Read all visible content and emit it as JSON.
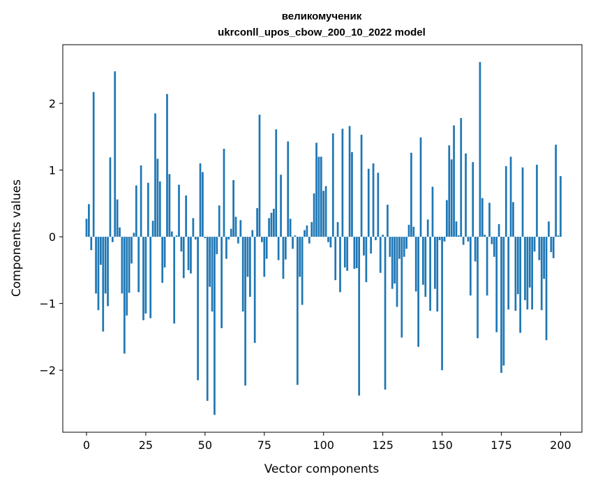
{
  "chart_data": {
    "type": "bar",
    "title_line1": "великомученик",
    "title_line2": "ukrconll_upos_cbow_200_10_2022 model",
    "xlabel": "Vector components",
    "ylabel": "Components values",
    "xlim": [
      -10,
      209
    ],
    "ylim": [
      -2.93,
      2.88
    ],
    "xticks": [
      0,
      25,
      50,
      75,
      100,
      125,
      150,
      175,
      200
    ],
    "yticks": [
      -2,
      -1,
      0,
      1,
      2
    ],
    "xtick_labels": [
      "0",
      "25",
      "50",
      "75",
      "100",
      "125",
      "150",
      "175",
      "200"
    ],
    "ytick_labels": [
      "−2",
      "−1",
      "0",
      "1",
      "2"
    ],
    "bar_color": "#1f77b4",
    "grid": false,
    "values": [
      0.27,
      0.49,
      -0.2,
      2.17,
      -0.85,
      -1.1,
      -0.42,
      -1.42,
      -0.85,
      -1.04,
      1.19,
      -0.08,
      2.48,
      0.56,
      0.14,
      -0.85,
      -1.75,
      -1.18,
      -0.84,
      -0.4,
      0.06,
      0.77,
      -0.83,
      1.07,
      -1.25,
      -1.15,
      0.81,
      -1.22,
      0.24,
      1.85,
      1.17,
      0.83,
      -0.69,
      -0.46,
      2.14,
      0.94,
      0.08,
      -1.3,
      0.02,
      0.78,
      -0.22,
      -0.62,
      0.62,
      -0.5,
      -0.55,
      0.28,
      -0.04,
      -2.15,
      1.1,
      0.97,
      -0.02,
      -2.46,
      -0.75,
      -1.12,
      -2.67,
      -0.26,
      0.47,
      -1.37,
      1.32,
      -0.33,
      -0.04,
      0.12,
      0.85,
      0.3,
      -0.1,
      0.25,
      -1.12,
      -2.23,
      -0.6,
      -0.9,
      0.1,
      -1.59,
      0.43,
      1.83,
      -0.08,
      -0.6,
      -0.33,
      0.28,
      0.36,
      0.42,
      1.61,
      -0.35,
      0.93,
      -0.63,
      -0.34,
      1.43,
      0.27,
      -0.18,
      0.02,
      -2.22,
      -0.6,
      -1.02,
      0.1,
      0.17,
      -0.1,
      0.22,
      0.65,
      1.41,
      1.2,
      1.2,
      0.69,
      0.76,
      -0.08,
      -0.16,
      1.55,
      -0.65,
      0.22,
      -0.83,
      1.62,
      -0.46,
      -0.51,
      1.66,
      1.27,
      -0.48,
      -0.47,
      -2.38,
      1.53,
      -0.28,
      -0.68,
      1.02,
      -0.25,
      1.1,
      -0.05,
      0.96,
      -0.54,
      0.03,
      -2.29,
      0.48,
      -0.3,
      -0.78,
      -0.7,
      -1.05,
      -0.33,
      -1.51,
      -0.3,
      -0.18,
      0.18,
      1.26,
      0.15,
      -0.82,
      -1.65,
      1.49,
      -0.72,
      -0.9,
      0.26,
      -1.11,
      0.75,
      -0.78,
      -1.12,
      -0.05,
      -2.0,
      -0.07,
      0.55,
      1.37,
      1.16,
      1.67,
      0.23,
      0.02,
      1.78,
      -0.12,
      1.25,
      -0.07,
      -0.88,
      1.12,
      -0.37,
      -1.52,
      2.62,
      0.58,
      0.03,
      -0.88,
      0.51,
      -0.11,
      -0.3,
      -1.43,
      0.19,
      -2.04,
      -1.93,
      1.06,
      -1.09,
      1.2,
      0.52,
      -1.11,
      -0.86,
      -1.44,
      1.04,
      -0.95,
      -1.09,
      -0.76,
      -1.09,
      -0.22,
      1.08,
      -0.35,
      -1.1,
      -0.63,
      -1.55,
      0.23,
      -0.23,
      -0.32,
      1.38,
      0.02,
      0.91
    ]
  }
}
